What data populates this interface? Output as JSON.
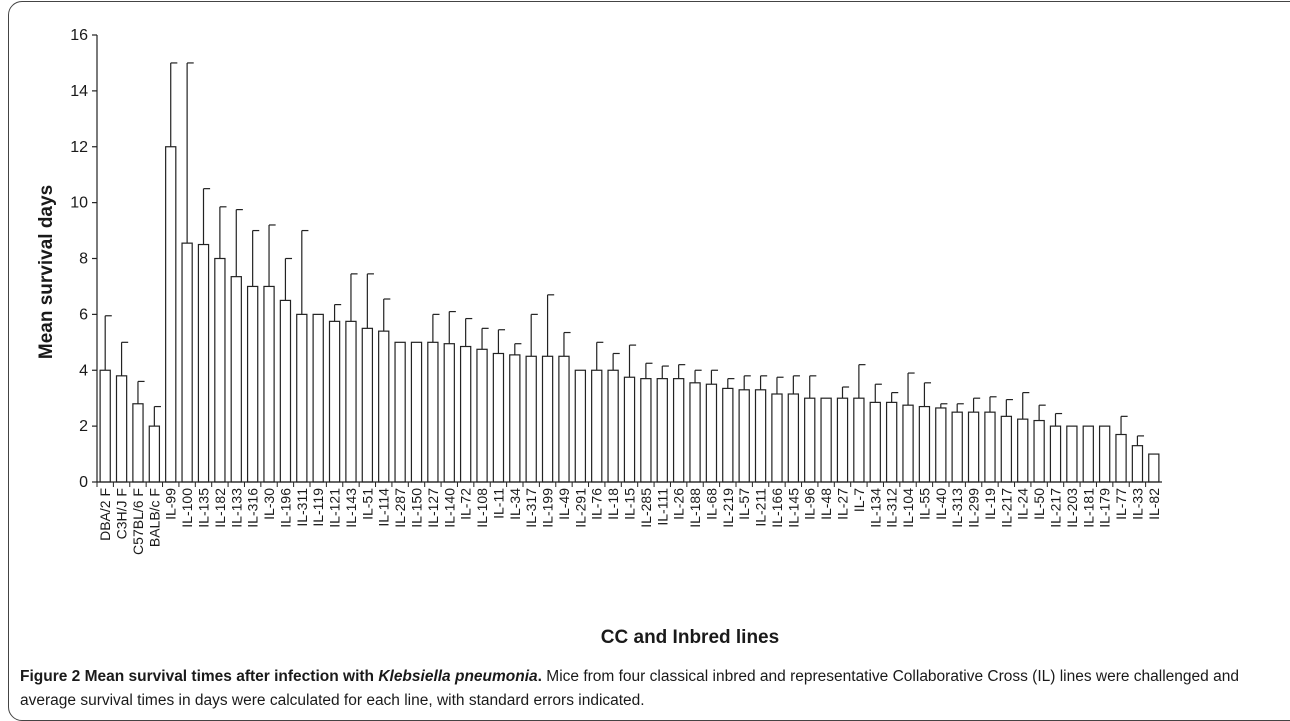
{
  "chart_data": {
    "type": "bar",
    "ylabel": "Mean survival days",
    "xlabel": "CC and Inbred lines",
    "ylim": [
      0,
      16
    ],
    "yticks": [
      0,
      2,
      4,
      6,
      8,
      10,
      12,
      14,
      16
    ],
    "grid": false,
    "categories": [
      "DBA/2 F",
      "C3H/J F",
      "C57BL/6 F",
      "BALB/c F",
      "IL-99",
      "IL-100",
      "IL-135",
      "IL-182",
      "IL-133",
      "IL-316",
      "IL-30",
      "IL-196",
      "IL-311",
      "IL-119",
      "IL-121",
      "IL-143",
      "IL-51",
      "IL-114",
      "IL-287",
      "IL-150",
      "IL-127",
      "IL-140",
      "IL-72",
      "IL-108",
      "IL-11",
      "IL-34",
      "IL-317",
      "IL-199",
      "IL-49",
      "IL-291",
      "IL-76",
      "IL-18",
      "IL-15",
      "IL-285",
      "IL-111",
      "IL-26",
      "IL-188",
      "IL-68",
      "IL-219",
      "IL-57",
      "IL-211",
      "IL-166",
      "IL-145",
      "IL-96",
      "IL-48",
      "IL-27",
      "IL-7",
      "IL-134",
      "IL-312",
      "IL-104",
      "IL-55",
      "IL-40",
      "IL-313",
      "IL-299",
      "IL-19",
      "IL-217",
      "IL-24",
      "IL-50",
      "IL-217",
      "IL-203",
      "IL-181",
      "IL-179",
      "IL-77",
      "IL-33",
      "IL-82"
    ],
    "values": [
      4.0,
      3.8,
      2.8,
      2.0,
      12.0,
      8.55,
      8.5,
      8.0,
      7.35,
      7.0,
      7.0,
      6.5,
      6.0,
      6.0,
      5.75,
      5.75,
      5.5,
      5.4,
      5.0,
      5.0,
      5.0,
      4.95,
      4.85,
      4.75,
      4.6,
      4.55,
      4.5,
      4.5,
      4.5,
      4.0,
      4.0,
      4.0,
      3.75,
      3.7,
      3.7,
      3.7,
      3.55,
      3.5,
      3.35,
      3.3,
      3.3,
      3.15,
      3.15,
      3.0,
      3.0,
      3.0,
      3.0,
      2.85,
      2.85,
      2.75,
      2.7,
      2.65,
      2.5,
      2.5,
      2.5,
      2.35,
      2.25,
      2.2,
      2.0,
      2.0,
      2.0,
      2.0,
      1.7,
      1.3,
      1.0
    ],
    "errors": [
      1.95,
      1.2,
      0.8,
      0.7,
      3.0,
      6.45,
      2.0,
      1.85,
      2.4,
      2.0,
      2.2,
      1.5,
      3.0,
      0.0,
      0.6,
      1.7,
      1.95,
      1.15,
      0.0,
      0.0,
      1.0,
      1.15,
      1.0,
      0.75,
      0.85,
      0.4,
      1.5,
      2.2,
      0.85,
      0.0,
      1.0,
      0.6,
      1.15,
      0.55,
      0.45,
      0.5,
      0.45,
      0.5,
      0.35,
      0.5,
      0.5,
      0.6,
      0.65,
      0.8,
      0.0,
      0.4,
      1.2,
      0.65,
      0.35,
      1.15,
      0.85,
      0.15,
      0.3,
      0.5,
      0.55,
      0.6,
      0.95,
      0.55,
      0.45,
      0.0,
      0.0,
      0.0,
      0.65,
      0.35,
      0.0
    ]
  },
  "caption": {
    "lead": "Figure 2 Mean survival times after infection with ",
    "lead_em": "Klebsiella pneumonia",
    "lead_end": ".",
    "text": " Mice from four classical inbred and representative Collaborative Cross (IL) lines were challenged and average survival times in days were calculated for each line, with standard errors indicated."
  }
}
